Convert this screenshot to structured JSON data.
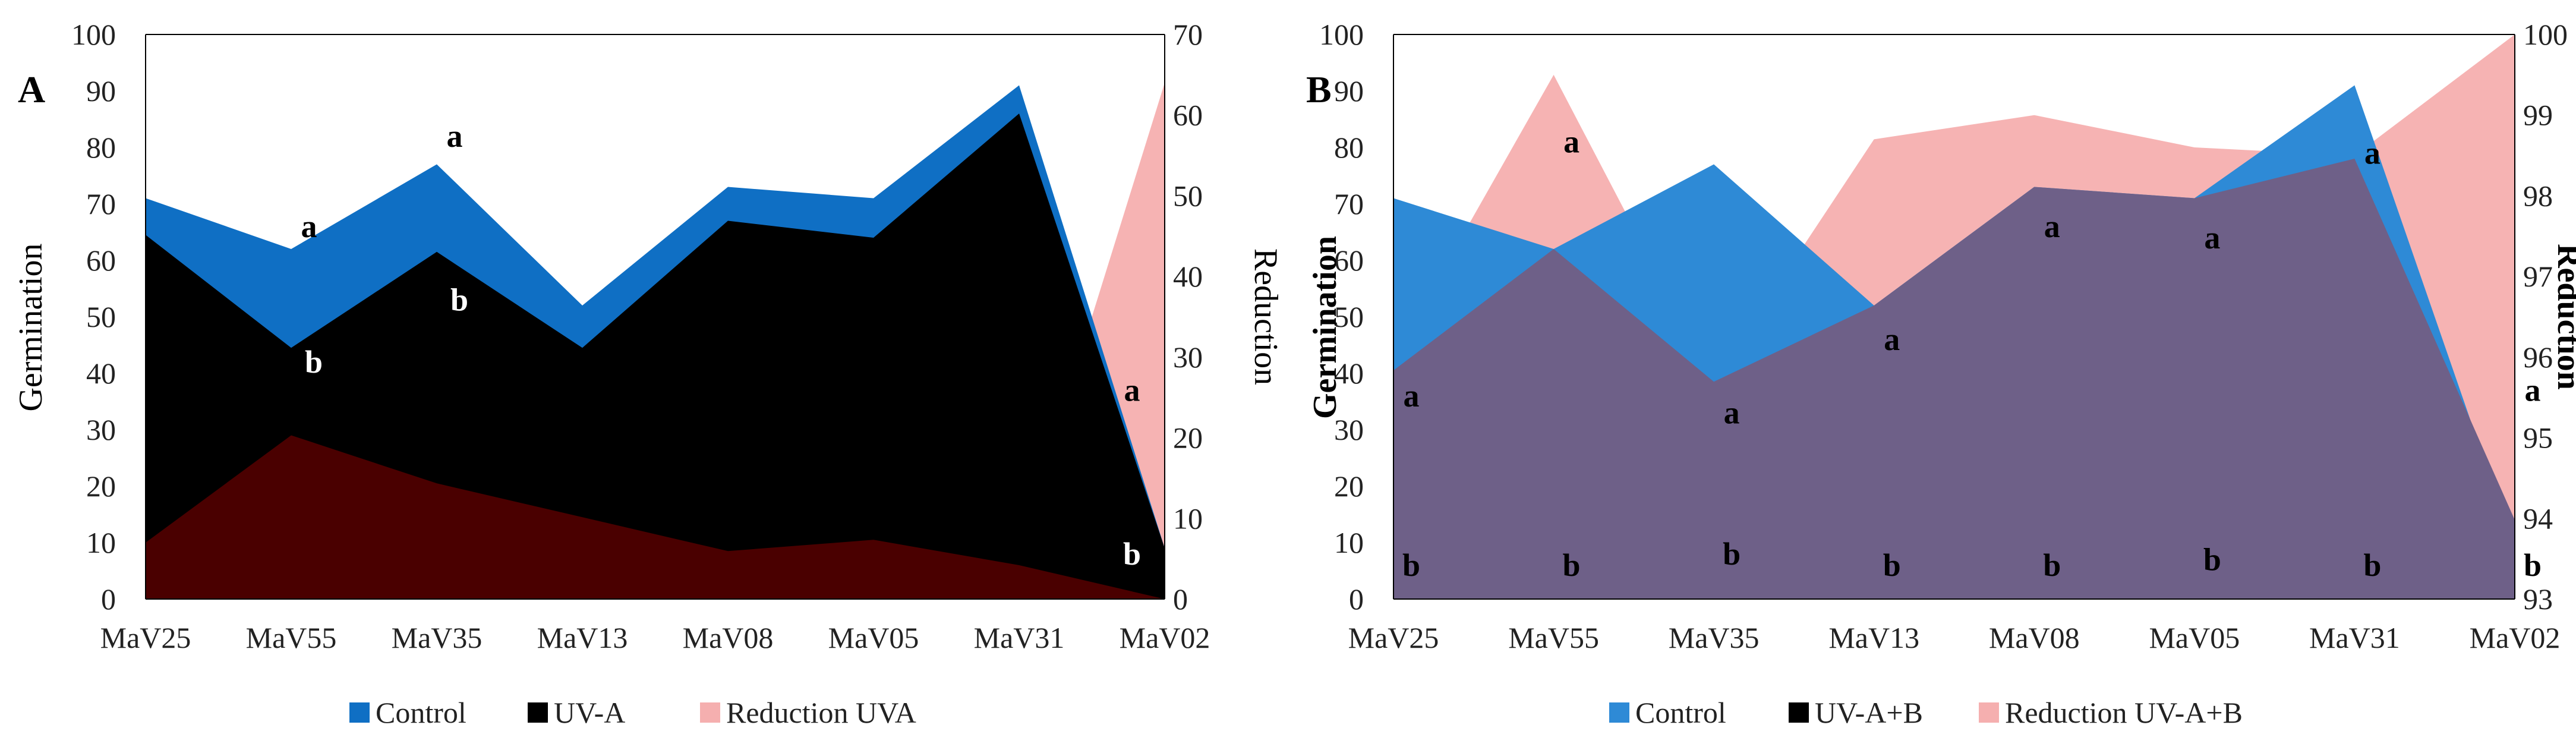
{
  "chart_data": [
    {
      "type": "area",
      "panel_label": "A",
      "categories": [
        "MaV25",
        "MaV55",
        "MaV35",
        "MaV13",
        "MaV08",
        "MaV05",
        "MaV31",
        "MaV02"
      ],
      "ylabel": "Germination",
      "y2label": "Reduction",
      "ylim": [
        0,
        100
      ],
      "y2lim": [
        0,
        70
      ],
      "yticks": [
        0,
        10,
        20,
        30,
        40,
        50,
        60,
        70,
        80,
        90,
        100
      ],
      "y2ticks": [
        0,
        10,
        20,
        30,
        40,
        50,
        60,
        70
      ],
      "series": [
        {
          "name": "Reduction UVA",
          "axis": "secondary",
          "color": "#f4a6a6",
          "opacity": 0.85,
          "values": [
            10,
            29,
            20.5,
            14.5,
            8.5,
            10.5,
            6,
            64
          ]
        },
        {
          "name": "Control",
          "axis": "primary",
          "color": "#0f6fc4",
          "opacity": 1,
          "values": [
            71,
            62,
            77,
            52,
            73,
            71,
            91,
            9
          ]
        },
        {
          "name": "UV-A",
          "axis": "primary",
          "color": "#000000",
          "opacity": 1,
          "values": [
            64.5,
            44.5,
            61.5,
            44.5,
            67,
            64,
            86,
            9
          ]
        }
      ],
      "overlay": {
        "color": "#4a0000",
        "values": [
          10,
          29,
          20.5,
          14.5,
          8.5,
          10.5,
          6,
          0
        ]
      },
      "legend": [
        {
          "name": "Control",
          "color": "#0f6fc4"
        },
        {
          "name": "UV-A",
          "color": "#000000"
        },
        {
          "name": "Reduction UVA",
          "color": "#f4a6a6"
        }
      ],
      "annotations": [
        {
          "text": "a",
          "category": "MaV55",
          "y": 66,
          "color": "#000000"
        },
        {
          "text": "a",
          "category": "MaV35",
          "y": 82,
          "color": "#000000"
        },
        {
          "text": "b",
          "category": "MaV55",
          "y": 42,
          "color": "#ffffff"
        },
        {
          "text": "b",
          "category": "MaV35",
          "y": 53,
          "color": "#ffffff"
        },
        {
          "text": "a",
          "category": "MaV02",
          "y": 37,
          "color": "#000000"
        },
        {
          "text": "b",
          "category": "MaV02",
          "y": 8,
          "color": "#ffffff"
        }
      ]
    },
    {
      "type": "area",
      "panel_label": "B",
      "categories": [
        "MaV25",
        "MaV55",
        "MaV35",
        "MaV13",
        "MaV08",
        "MaV05",
        "MaV31",
        "MaV02"
      ],
      "ylabel": "Germination",
      "y2label": "Reduction",
      "ylim": [
        0,
        100
      ],
      "y2lim": [
        93,
        100
      ],
      "yticks": [
        0,
        10,
        20,
        30,
        40,
        50,
        60,
        70,
        80,
        90,
        100
      ],
      "y2ticks": [
        93,
        94,
        95,
        96,
        97,
        98,
        99,
        100
      ],
      "series": [
        {
          "name": "Reduction UV-A+B",
          "axis": "secondary",
          "color": "#f4a6a6",
          "opacity": 0.85,
          "values": [
            96,
            99.5,
            95.7,
            98.7,
            99,
            98.6,
            98.5,
            100
          ]
        },
        {
          "name": "Control",
          "axis": "primary",
          "color": "#2e8ad6",
          "opacity": 1,
          "values": [
            71,
            62,
            77,
            52,
            73,
            71,
            91,
            9
          ]
        },
        {
          "name": "UV-A+B",
          "axis": "primary",
          "color": "#000000",
          "opacity": 1,
          "values": [
            3,
            0,
            3.5,
            0.5,
            0.5,
            1,
            1.5,
            0
          ]
        }
      ],
      "overlay": {
        "color": "#6e6088",
        "values": [
          40.5,
          62,
          38.5,
          52,
          73,
          71,
          78,
          14
        ]
      },
      "legend": [
        {
          "name": "Control",
          "color": "#2e8ad6"
        },
        {
          "name": "UV-A+B",
          "color": "#000000"
        },
        {
          "name": "Reduction UV-A+B",
          "color": "#f4a6a6"
        }
      ],
      "annotations": [
        {
          "text": "a",
          "category": "MaV25",
          "y": 36,
          "color": "#000000"
        },
        {
          "text": "a",
          "category": "MaV55",
          "y": 81,
          "color": "#000000"
        },
        {
          "text": "a",
          "category": "MaV35",
          "y": 33,
          "color": "#000000"
        },
        {
          "text": "a",
          "category": "MaV13",
          "y": 46,
          "color": "#000000"
        },
        {
          "text": "a",
          "category": "MaV08",
          "y": 66,
          "color": "#000000"
        },
        {
          "text": "a",
          "category": "MaV05",
          "y": 64,
          "color": "#000000"
        },
        {
          "text": "a",
          "category": "MaV31",
          "y": 79,
          "color": "#000000"
        },
        {
          "text": "a",
          "category": "MaV02",
          "y": 37,
          "color": "#000000"
        },
        {
          "text": "b",
          "category": "MaV25",
          "y": 6,
          "color": "#000000"
        },
        {
          "text": "b",
          "category": "MaV55",
          "y": 6,
          "color": "#000000"
        },
        {
          "text": "b",
          "category": "MaV35",
          "y": 8,
          "color": "#000000"
        },
        {
          "text": "b",
          "category": "MaV13",
          "y": 6,
          "color": "#000000"
        },
        {
          "text": "b",
          "category": "MaV08",
          "y": 6,
          "color": "#000000"
        },
        {
          "text": "b",
          "category": "MaV05",
          "y": 7,
          "color": "#000000"
        },
        {
          "text": "b",
          "category": "MaV31",
          "y": 6,
          "color": "#000000"
        },
        {
          "text": "b",
          "category": "MaV02",
          "y": 6,
          "color": "#000000"
        }
      ]
    }
  ]
}
